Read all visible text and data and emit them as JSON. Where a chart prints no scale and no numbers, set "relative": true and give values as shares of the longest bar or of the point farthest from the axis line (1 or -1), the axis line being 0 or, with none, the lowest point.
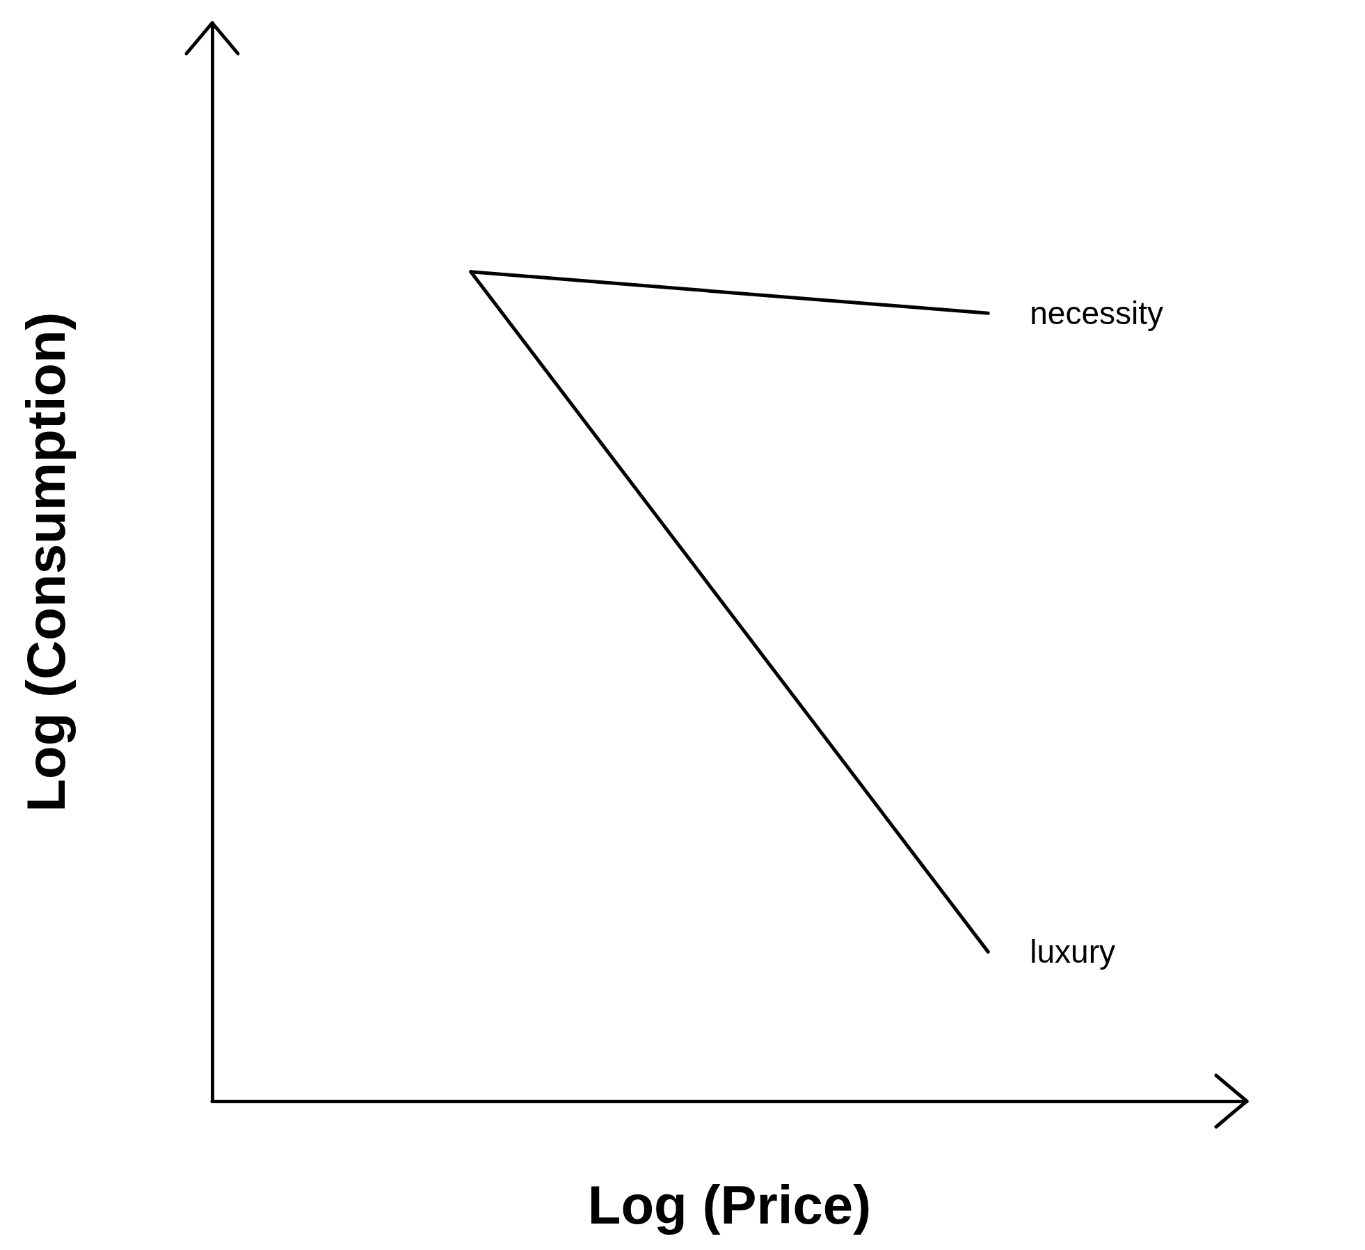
{
  "chart_data": {
    "type": "line",
    "relative": true,
    "xlabel": "Log (Price)",
    "ylabel": "Log (Consumption)",
    "categories": [
      null,
      null
    ],
    "marker": "none",
    "line_style": "solid",
    "series": [
      {
        "name": "necessity",
        "color": "#000000",
        "values": [
          1,
          0.95
        ]
      },
      {
        "name": "luxury",
        "color": "#000000",
        "values": [
          1,
          0.18
        ]
      }
    ]
  }
}
